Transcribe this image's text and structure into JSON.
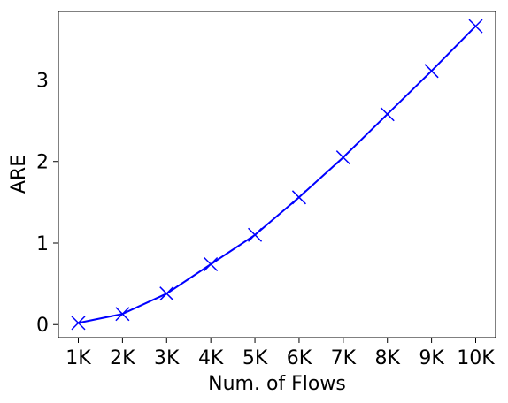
{
  "chart_data": {
    "type": "line",
    "title": "",
    "xlabel": "Num. of Flows",
    "ylabel": "ARE",
    "categories": [
      "1K",
      "2K",
      "3K",
      "4K",
      "5K",
      "6K",
      "7K",
      "8K",
      "9K",
      "10K"
    ],
    "series": [
      {
        "color": "#0000ff",
        "marker": "x",
        "values": [
          0.02,
          0.13,
          0.38,
          0.74,
          1.1,
          1.56,
          2.05,
          2.58,
          3.11,
          3.66
        ]
      }
    ],
    "yticks": [
      0,
      1,
      2,
      3
    ],
    "ylim": [
      -0.16,
      3.84
    ],
    "grid": false,
    "legend": "none"
  }
}
